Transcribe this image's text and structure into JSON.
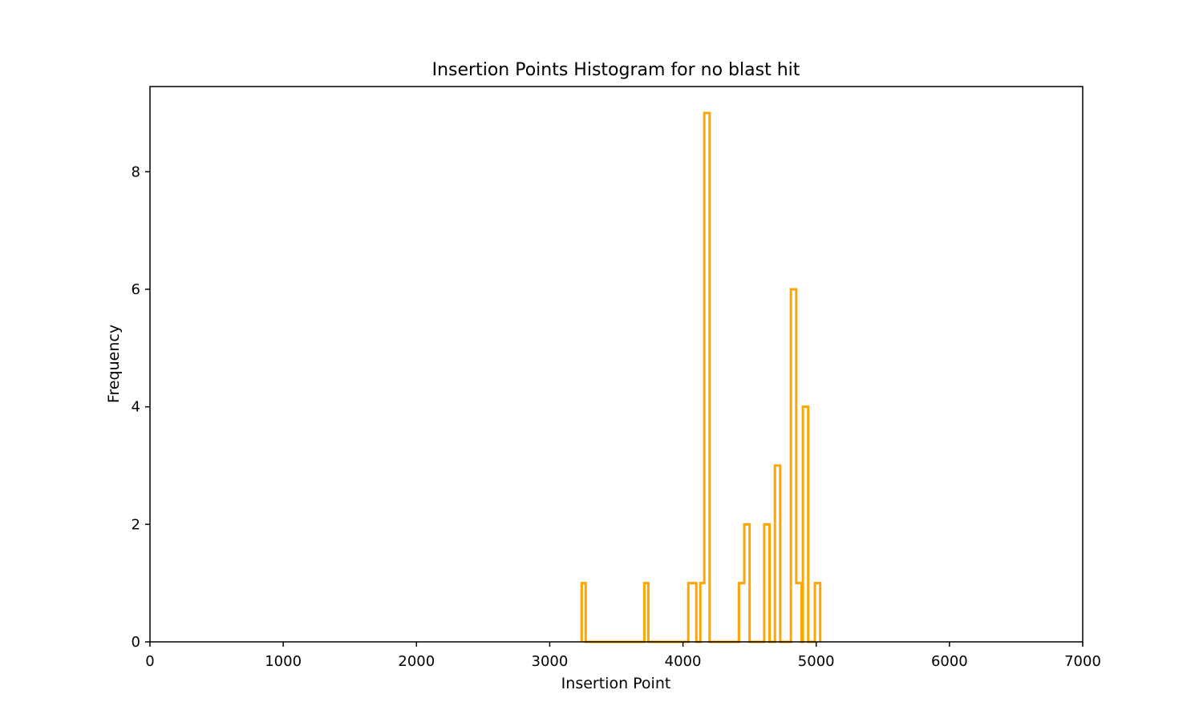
{
  "chart_data": {
    "type": "histogram",
    "title": "Insertion Points Histogram for no blast hit",
    "xlabel": "Insertion Point",
    "ylabel": "Frequency",
    "xlim": [
      0,
      7000
    ],
    "ylim": [
      0,
      9.45
    ],
    "xticks": [
      0,
      1000,
      2000,
      3000,
      4000,
      5000,
      6000,
      7000
    ],
    "yticks": [
      0,
      2,
      4,
      6,
      8
    ],
    "grid": false,
    "color": "#ffa500",
    "bins": [
      {
        "start": 3240,
        "end": 3270,
        "count": 1
      },
      {
        "start": 3270,
        "end": 3710,
        "count": 0
      },
      {
        "start": 3710,
        "end": 3740,
        "count": 1
      },
      {
        "start": 3740,
        "end": 4040,
        "count": 0
      },
      {
        "start": 4040,
        "end": 4100,
        "count": 1
      },
      {
        "start": 4100,
        "end": 4130,
        "count": 0
      },
      {
        "start": 4130,
        "end": 4160,
        "count": 1
      },
      {
        "start": 4160,
        "end": 4200,
        "count": 9
      },
      {
        "start": 4200,
        "end": 4420,
        "count": 0
      },
      {
        "start": 4420,
        "end": 4460,
        "count": 1
      },
      {
        "start": 4460,
        "end": 4500,
        "count": 2
      },
      {
        "start": 4500,
        "end": 4610,
        "count": 0
      },
      {
        "start": 4610,
        "end": 4650,
        "count": 2
      },
      {
        "start": 4650,
        "end": 4690,
        "count": 0
      },
      {
        "start": 4690,
        "end": 4730,
        "count": 3
      },
      {
        "start": 4730,
        "end": 4810,
        "count": 0
      },
      {
        "start": 4810,
        "end": 4850,
        "count": 6
      },
      {
        "start": 4850,
        "end": 4890,
        "count": 1
      },
      {
        "start": 4890,
        "end": 4900,
        "count": 0
      },
      {
        "start": 4900,
        "end": 4940,
        "count": 4
      },
      {
        "start": 4940,
        "end": 4990,
        "count": 0
      },
      {
        "start": 4990,
        "end": 5030,
        "count": 1
      }
    ]
  }
}
